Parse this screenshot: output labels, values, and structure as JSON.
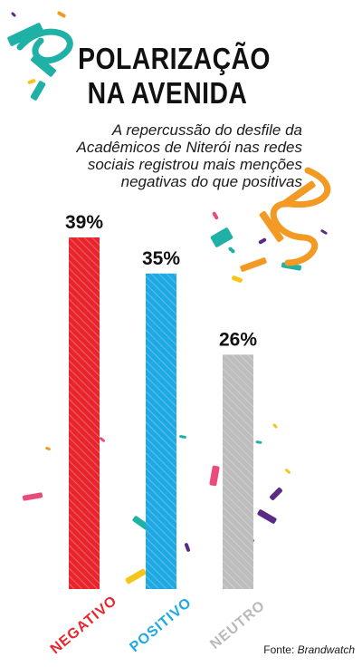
{
  "title_line1": "POLARIZAÇÃO",
  "title_line2": "NA AVENIDA",
  "subtitle": "A repercussão do desfile da Acadêmicos de Niterói nas redes sociais registrou mais menções negativas do que positivas",
  "source_prefix": "Fonte: ",
  "source_name": "Brandwatch",
  "colors": {
    "negativo": "#e8252d",
    "positivo": "#1fa9e3",
    "neutro": "#bdbdbd",
    "confetti_teal": "#1fb0a6",
    "confetti_orange": "#f39a25",
    "confetti_purple": "#5b2a86",
    "confetti_pink": "#e94b7a",
    "confetti_yellow": "#f5c518"
  },
  "chart_data": {
    "type": "bar",
    "title": "POLARIZAÇÃO NA AVENIDA",
    "categories": [
      "NEGATIVO",
      "POSITIVO",
      "NEUTRO"
    ],
    "values": [
      39,
      35,
      26
    ],
    "value_labels": [
      "39%",
      "35%",
      "26%"
    ],
    "unit": "%",
    "ylim": [
      0,
      39
    ],
    "grid": false,
    "legend": "none"
  }
}
